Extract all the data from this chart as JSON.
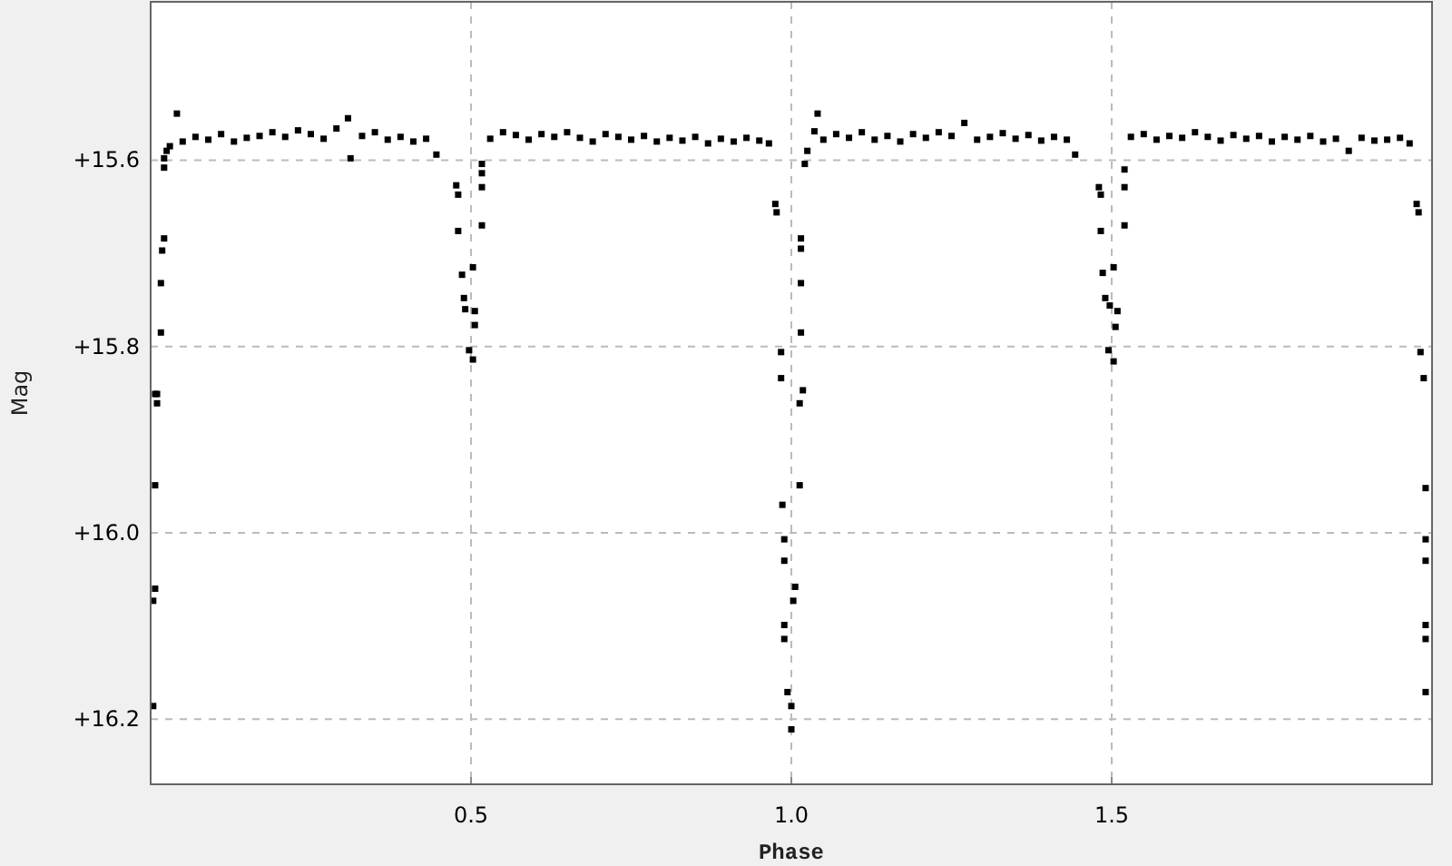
{
  "chart_data": {
    "type": "scatter",
    "xlabel": "Phase",
    "ylabel": "Mag",
    "xlim": [
      0,
      2
    ],
    "ylim": [
      16.27,
      15.43
    ],
    "xticks": [
      0.5,
      {
        "value": 1.0,
        "label": "1.0"
      },
      1.5
    ],
    "yticks": [
      {
        "value": 15.6,
        "label": "+15.6"
      },
      {
        "value": 15.8,
        "label": "+15.8"
      },
      {
        "value": 16.0,
        "label": "+16.0"
      },
      {
        "value": 16.2,
        "label": "+16.2"
      }
    ],
    "grid": true,
    "marker": "square",
    "series": [
      {
        "color": "#000000",
        "x": [
          0.004,
          0.004,
          0.007,
          0.007,
          0.007,
          0.01,
          0.01,
          0.016,
          0.016,
          0.018,
          0.021,
          0.021,
          0.021,
          0.025,
          0.03,
          0.041,
          0.05,
          0.07,
          0.09,
          0.11,
          0.13,
          0.15,
          0.17,
          0.19,
          0.21,
          0.23,
          0.25,
          0.27,
          0.29,
          0.308,
          0.312,
          0.33,
          0.35,
          0.37,
          0.39,
          0.41,
          0.43,
          0.446,
          0.477,
          0.48,
          0.48,
          0.486,
          0.489,
          0.491,
          0.497,
          0.503,
          0.503,
          0.506,
          0.506,
          0.517,
          0.517,
          0.517,
          0.517,
          0.53,
          0.55,
          0.57,
          0.59,
          0.61,
          0.63,
          0.65,
          0.67,
          0.69,
          0.71,
          0.73,
          0.75,
          0.77,
          0.79,
          0.81,
          0.83,
          0.85,
          0.87,
          0.89,
          0.91,
          0.93,
          0.95,
          0.965,
          0.975,
          0.977,
          0.984,
          0.984,
          0.986,
          0.989,
          0.989,
          0.989,
          0.989,
          0.994,
          1.0,
          1.0,
          1.003,
          1.006,
          1.013,
          1.013,
          1.015,
          1.015,
          1.015,
          1.015,
          1.018,
          1.021,
          1.025,
          1.036,
          1.041,
          1.05,
          1.07,
          1.09,
          1.11,
          1.13,
          1.15,
          1.17,
          1.19,
          1.21,
          1.23,
          1.25,
          1.27,
          1.29,
          1.31,
          1.33,
          1.35,
          1.37,
          1.39,
          1.41,
          1.43,
          1.443,
          1.48,
          1.483,
          1.483,
          1.486,
          1.49,
          1.495,
          1.497,
          1.503,
          1.503,
          1.506,
          1.509,
          1.52,
          1.52,
          1.52,
          1.53,
          1.55,
          1.57,
          1.59,
          1.61,
          1.63,
          1.65,
          1.67,
          1.69,
          1.71,
          1.73,
          1.75,
          1.77,
          1.79,
          1.81,
          1.83,
          1.85,
          1.87,
          1.89,
          1.91,
          1.93,
          1.95,
          1.965,
          1.976,
          1.979,
          1.982,
          1.987,
          1.99,
          1.99,
          1.99,
          1.99,
          1.99,
          1.99
        ],
        "values": [
          16.073,
          16.186,
          15.949,
          16.06,
          15.851,
          15.851,
          15.861,
          15.732,
          15.785,
          15.697,
          15.684,
          15.598,
          15.608,
          15.59,
          15.585,
          15.55,
          15.58,
          15.575,
          15.578,
          15.572,
          15.58,
          15.576,
          15.574,
          15.57,
          15.575,
          15.568,
          15.572,
          15.577,
          15.566,
          15.555,
          15.598,
          15.574,
          15.57,
          15.578,
          15.575,
          15.58,
          15.577,
          15.594,
          15.627,
          15.637,
          15.676,
          15.723,
          15.748,
          15.76,
          15.804,
          15.715,
          15.814,
          15.762,
          15.777,
          15.604,
          15.614,
          15.629,
          15.67,
          15.577,
          15.57,
          15.573,
          15.578,
          15.572,
          15.575,
          15.57,
          15.576,
          15.58,
          15.572,
          15.575,
          15.578,
          15.574,
          15.58,
          15.576,
          15.579,
          15.575,
          15.582,
          15.577,
          15.58,
          15.576,
          15.579,
          15.582,
          15.647,
          15.656,
          15.806,
          15.834,
          15.97,
          16.007,
          16.03,
          16.099,
          16.114,
          16.171,
          16.186,
          16.211,
          16.073,
          16.058,
          15.861,
          15.949,
          15.684,
          15.695,
          15.732,
          15.785,
          15.847,
          15.604,
          15.59,
          15.569,
          15.55,
          15.578,
          15.572,
          15.576,
          15.57,
          15.578,
          15.574,
          15.58,
          15.572,
          15.576,
          15.57,
          15.574,
          15.56,
          15.578,
          15.575,
          15.571,
          15.577,
          15.573,
          15.579,
          15.575,
          15.578,
          15.594,
          15.629,
          15.637,
          15.676,
          15.721,
          15.748,
          15.804,
          15.756,
          15.715,
          15.816,
          15.779,
          15.762,
          15.61,
          15.629,
          15.67,
          15.575,
          15.572,
          15.578,
          15.574,
          15.576,
          15.57,
          15.575,
          15.579,
          15.573,
          15.577,
          15.574,
          15.58,
          15.575,
          15.578,
          15.574,
          15.58,
          15.577,
          15.59,
          15.576,
          15.579,
          15.578,
          15.576,
          15.582,
          15.647,
          15.656,
          15.806,
          15.834,
          15.952,
          16.007,
          16.03,
          16.099,
          16.114,
          16.171
        ]
      }
    ]
  }
}
